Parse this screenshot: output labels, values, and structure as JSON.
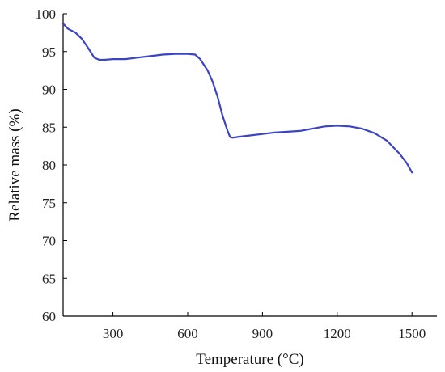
{
  "chart_data": {
    "type": "line",
    "title": "",
    "xlabel": "Temperature (°C)",
    "ylabel": "Relative mass (%)",
    "xlim": [
      100,
      1600
    ],
    "ylim": [
      60,
      100
    ],
    "grid": false,
    "legend": "none",
    "xticks": [
      300,
      600,
      900,
      1200,
      1500
    ],
    "xtick_labels": [
      "300",
      "600",
      "900",
      "1200",
      "1500"
    ],
    "yticks": [
      60,
      65,
      70,
      75,
      80,
      85,
      90,
      95,
      100
    ],
    "ytick_labels": [
      "60",
      "65",
      "70",
      "75",
      "80",
      "85",
      "90",
      "95",
      "100"
    ],
    "series": [
      {
        "color": "#3a44c4",
        "x": [
          100,
          120,
          150,
          175,
          200,
          225,
          245,
          265,
          300,
          350,
          400,
          450,
          500,
          550,
          600,
          630,
          650,
          680,
          700,
          720,
          740,
          760,
          770,
          780,
          800,
          850,
          900,
          950,
          1000,
          1050,
          1100,
          1150,
          1200,
          1250,
          1300,
          1350,
          1400,
          1450,
          1480,
          1500
        ],
        "y": [
          98.7,
          98.0,
          97.5,
          96.7,
          95.5,
          94.2,
          93.9,
          93.9,
          94.0,
          94.0,
          94.2,
          94.4,
          94.6,
          94.7,
          94.7,
          94.6,
          94.0,
          92.5,
          91.0,
          89.0,
          86.5,
          84.5,
          83.7,
          83.6,
          83.7,
          83.9,
          84.1,
          84.3,
          84.4,
          84.5,
          84.8,
          85.1,
          85.2,
          85.1,
          84.8,
          84.2,
          83.2,
          81.5,
          80.2,
          79.0
        ]
      }
    ]
  }
}
